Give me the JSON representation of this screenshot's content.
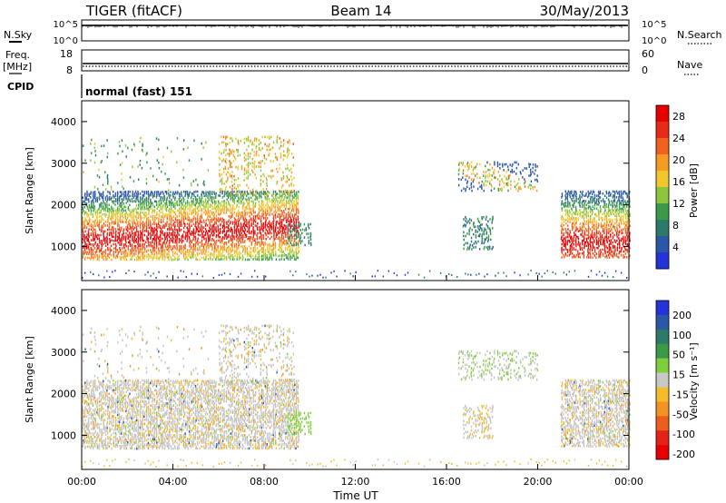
{
  "header": {
    "radar": "TIGER (fitACF)",
    "beam": "Beam 14",
    "date": "30/May/2013"
  },
  "panels": {
    "nsky": {
      "label": "N.Sky",
      "ticks": [
        "10^5",
        "10^0"
      ],
      "right_label": "N.Search",
      "right_ticks": [
        "10^5",
        "10^0"
      ]
    },
    "freq": {
      "label": "Freq.",
      "unit": "[MHz]",
      "ticks": [
        "18",
        "8"
      ],
      "right_label": "Nave",
      "right_ticks": [
        "60",
        "0"
      ]
    },
    "cpid": {
      "label": "CPID",
      "text": "normal (fast) 151"
    }
  },
  "colors": {
    "power_scale": [
      "#2433d8",
      "#2a57a8",
      "#2e7a68",
      "#3b9a48",
      "#8cc63c",
      "#f2c72c",
      "#f79a22",
      "#f0601e",
      "#e52a18",
      "#e60000"
    ],
    "velocity_scale": [
      "#2433d8",
      "#2a57a8",
      "#2e7a68",
      "#3b9a48",
      "#7fcf3c",
      "#c8c8c8",
      "#f3bd2a",
      "#f29322",
      "#ee5d1c",
      "#e52218",
      "#e60000"
    ],
    "ground_scatter": "#c3c3c3"
  },
  "chart_data": [
    {
      "type": "heatmap",
      "name": "power",
      "xlabel": "",
      "ylabel": "Slant Range [km]",
      "x_ticks": [
        "00:00",
        "04:00",
        "08:00",
        "12:00",
        "16:00",
        "20:00",
        "00:00"
      ],
      "xlim_hours": [
        0,
        24
      ],
      "ylim_km": [
        180,
        4500
      ],
      "y_ticks": [
        "1000",
        "2000",
        "3000",
        "4000"
      ],
      "colorbar": {
        "label": "Power [dB]",
        "ticks": [
          "4",
          "8",
          "12",
          "16",
          "20",
          "24",
          "28"
        ],
        "range": [
          0,
          30
        ]
      }
    },
    {
      "type": "heatmap",
      "name": "velocity",
      "xlabel": "Time UT",
      "ylabel": "Slant Range [km]",
      "x_ticks": [
        "00:00",
        "04:00",
        "08:00",
        "12:00",
        "16:00",
        "20:00",
        "00:00"
      ],
      "xlim_hours": [
        0,
        24
      ],
      "ylim_km": [
        180,
        4500
      ],
      "y_ticks": [
        "1000",
        "2000",
        "3000",
        "4000"
      ],
      "colorbar": {
        "label": "Velocity [m s⁻¹]",
        "ticks": [
          "200",
          "100",
          "50",
          "15",
          "-15",
          "-50",
          "-100",
          "-200"
        ],
        "range": [
          -250,
          250
        ]
      }
    }
  ]
}
